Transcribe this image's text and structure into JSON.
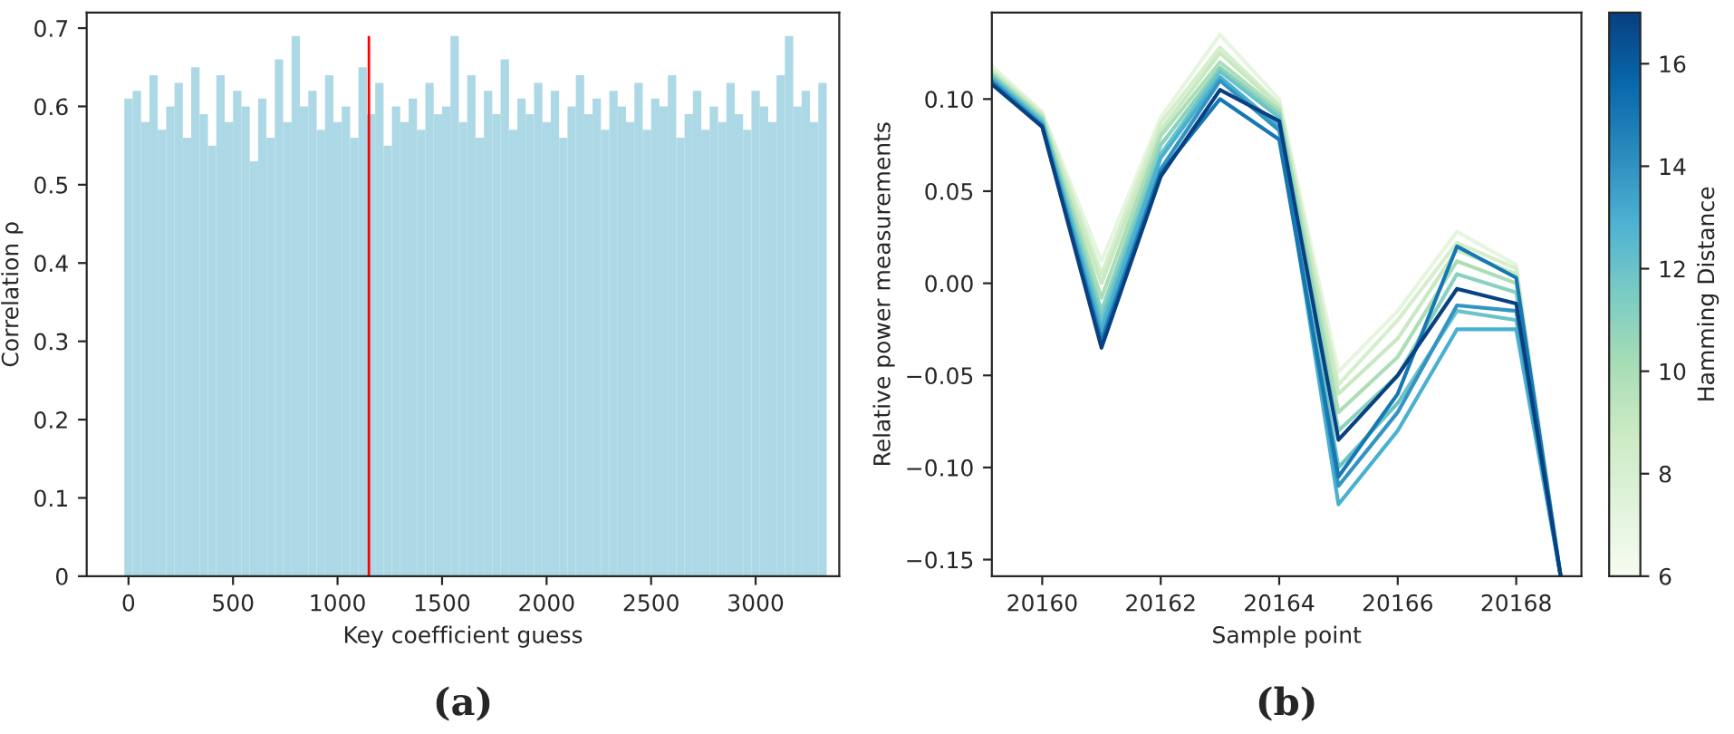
{
  "chart_data": [
    {
      "type": "bar",
      "xlabel": "Key coefficient guess",
      "ylabel": "Correlation ρ",
      "xlim": [
        -200,
        3400
      ],
      "ylim": [
        0,
        0.72
      ],
      "xticks": [
        0,
        500,
        1000,
        1500,
        2000,
        2500,
        3000
      ],
      "yticks": [
        0,
        0.1,
        0.2,
        0.3,
        0.4,
        0.5,
        0.6,
        0.7
      ],
      "grid": false,
      "annotations": [
        "(a)"
      ],
      "series": [
        {
          "color": "#add8e6",
          "x": [
            0,
            40,
            80,
            120,
            160,
            200,
            240,
            280,
            320,
            360,
            400,
            440,
            480,
            520,
            560,
            600,
            640,
            680,
            720,
            760,
            800,
            840,
            880,
            920,
            960,
            1000,
            1040,
            1080,
            1120,
            1160,
            1200,
            1240,
            1280,
            1320,
            1360,
            1400,
            1440,
            1480,
            1520,
            1560,
            1600,
            1640,
            1680,
            1720,
            1760,
            1800,
            1840,
            1880,
            1920,
            1960,
            2000,
            2040,
            2080,
            2120,
            2160,
            2200,
            2240,
            2280,
            2320,
            2360,
            2400,
            2440,
            2480,
            2520,
            2560,
            2600,
            2640,
            2680,
            2720,
            2760,
            2800,
            2840,
            2880,
            2920,
            2960,
            3000,
            3040,
            3080,
            3120,
            3160,
            3200,
            3240,
            3280,
            3320
          ],
          "values": [
            0.61,
            0.62,
            0.58,
            0.64,
            0.57,
            0.6,
            0.63,
            0.56,
            0.65,
            0.59,
            0.55,
            0.64,
            0.58,
            0.62,
            0.6,
            0.53,
            0.61,
            0.56,
            0.66,
            0.58,
            0.69,
            0.6,
            0.62,
            0.57,
            0.64,
            0.58,
            0.6,
            0.56,
            0.65,
            0.59,
            0.63,
            0.55,
            0.6,
            0.58,
            0.61,
            0.57,
            0.63,
            0.59,
            0.6,
            0.69,
            0.58,
            0.64,
            0.56,
            0.62,
            0.59,
            0.66,
            0.57,
            0.61,
            0.59,
            0.63,
            0.58,
            0.62,
            0.56,
            0.6,
            0.64,
            0.59,
            0.61,
            0.57,
            0.62,
            0.6,
            0.58,
            0.63,
            0.57,
            0.61,
            0.6,
            0.64,
            0.56,
            0.59,
            0.62,
            0.57,
            0.6,
            0.58,
            0.63,
            0.59,
            0.57,
            0.62,
            0.6,
            0.58,
            0.64,
            0.69,
            0.6,
            0.62,
            0.58,
            0.63
          ]
        },
        {
          "type": "bar",
          "color": "#ff0000",
          "x": [
            1150
          ],
          "values": [
            0.69
          ]
        }
      ]
    },
    {
      "type": "line",
      "xlabel": "Sample point",
      "ylabel": "Relative power measurements",
      "clabel": "Hamming Distance",
      "clim": [
        6,
        17
      ],
      "cticks": [
        6,
        8,
        10,
        12,
        14,
        16
      ],
      "xlim": [
        20159.15,
        20169.1
      ],
      "ylim": [
        -0.159,
        0.147
      ],
      "xticks": [
        20160,
        20162,
        20164,
        20166,
        20168
      ],
      "yticks": [
        {
          "value": -0.15,
          "label": "−0.15"
        },
        {
          "value": -0.1,
          "label": "−0.10"
        },
        {
          "value": -0.05,
          "label": "−0.05"
        },
        {
          "value": 0,
          "label": "0.00"
        },
        {
          "value": 0.05,
          "label": "0.05"
        },
        {
          "value": 0.1,
          "label": "0.10"
        }
      ],
      "grid": false,
      "annotations": [
        "(b)"
      ],
      "x": [
        20159.15,
        20160,
        20161,
        20162,
        20163,
        20164,
        20165,
        20166,
        20167,
        20168,
        20168.75
      ],
      "series": [
        {
          "color": "#e5f5df",
          "values": [
            0.118,
            0.093,
            0.012,
            0.09,
            0.135,
            0.1,
            -0.048,
            -0.015,
            0.028,
            0.01,
            -0.159
          ]
        },
        {
          "color": "#d5eecb",
          "values": [
            0.116,
            0.092,
            0.005,
            0.087,
            0.128,
            0.097,
            -0.055,
            -0.02,
            0.022,
            0.008,
            -0.159
          ]
        },
        {
          "color": "#c8e9c3",
          "values": [
            0.115,
            0.091,
            0.0,
            0.083,
            0.125,
            0.096,
            -0.06,
            -0.03,
            0.018,
            0.005,
            -0.159
          ]
        },
        {
          "color": "#abdeb6",
          "values": [
            0.114,
            0.09,
            -0.008,
            0.08,
            0.12,
            0.094,
            -0.07,
            -0.04,
            0.012,
            0.0,
            -0.159
          ]
        },
        {
          "color": "#8ad2bf",
          "values": [
            0.113,
            0.089,
            -0.015,
            0.075,
            0.117,
            0.092,
            -0.08,
            -0.05,
            0.005,
            -0.005,
            -0.159
          ]
        },
        {
          "color": "#6bc3c8",
          "values": [
            0.112,
            0.088,
            -0.02,
            0.07,
            0.115,
            0.09,
            -0.1,
            -0.065,
            -0.015,
            -0.02,
            -0.159
          ]
        },
        {
          "color": "#4ab0d0",
          "values": [
            0.111,
            0.087,
            -0.025,
            0.068,
            0.112,
            0.085,
            -0.12,
            -0.08,
            -0.025,
            -0.025,
            -0.159
          ]
        },
        {
          "color": "#3294c2",
          "values": [
            0.11,
            0.086,
            -0.03,
            0.062,
            0.11,
            0.083,
            -0.11,
            -0.07,
            -0.012,
            -0.015,
            -0.159
          ]
        },
        {
          "color": "#1678b3",
          "values": [
            0.109,
            0.085,
            -0.032,
            0.06,
            0.1,
            0.078,
            -0.105,
            -0.06,
            0.02,
            0.003,
            -0.159
          ]
        },
        {
          "color": "#084081",
          "values": [
            0.108,
            0.085,
            -0.035,
            0.058,
            0.105,
            0.088,
            -0.085,
            -0.05,
            -0.003,
            -0.011,
            -0.159
          ]
        }
      ]
    }
  ]
}
